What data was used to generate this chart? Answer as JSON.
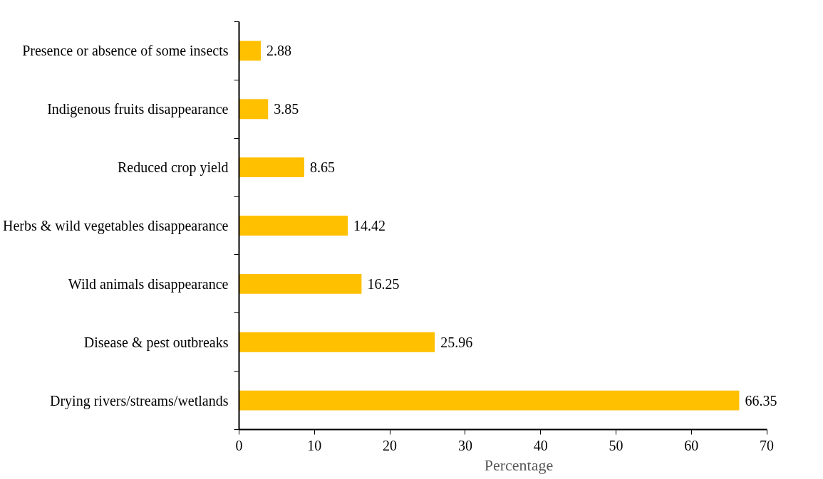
{
  "chart_data": {
    "type": "bar",
    "orientation": "horizontal",
    "xlabel": "Percentage",
    "categories": [
      "Presence or absence of some insects",
      "Indigenous fruits disappearance",
      "Reduced crop yield",
      "Herbs & wild vegetables disappearance",
      "Wild animals disappearance",
      "Disease & pest outbreaks",
      "Drying rivers/streams/wetlands"
    ],
    "values": [
      2.88,
      3.85,
      8.65,
      14.42,
      16.25,
      25.96,
      66.35
    ],
    "color": "#ffc000",
    "xlim": [
      0,
      70
    ],
    "xticks": [
      0,
      10,
      20,
      30,
      40,
      50,
      60,
      70
    ],
    "data_labels": true,
    "grid": false
  }
}
